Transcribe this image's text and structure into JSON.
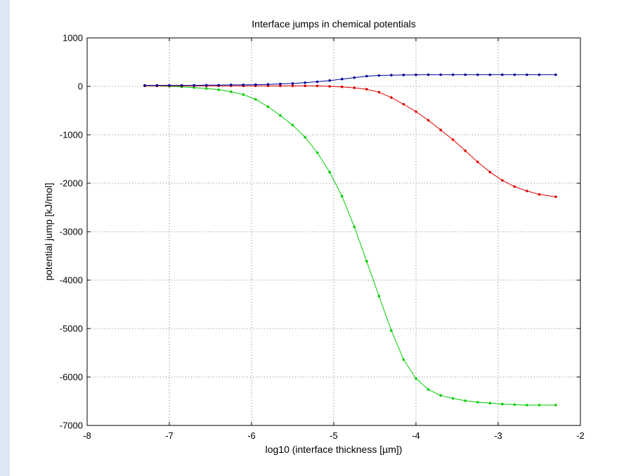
{
  "chart_data": {
    "type": "line",
    "title": "Interface jumps in chemical potentials",
    "xlabel": "log10 (interface thickness [µm])",
    "ylabel": "potential jump [kJ/mol]",
    "xlim": [
      -8,
      -2
    ],
    "ylim": [
      -7000,
      1000
    ],
    "xticks": [
      -8,
      -7,
      -6,
      -5,
      -4,
      -3,
      -2
    ],
    "yticks": [
      1000,
      0,
      -1000,
      -2000,
      -3000,
      -4000,
      -5000,
      -6000,
      -7000
    ],
    "grid": true,
    "series": [
      {
        "color": "#00cc00",
        "x": [
          -7.3,
          -7.15,
          -7.0,
          -6.85,
          -6.7,
          -6.55,
          -6.4,
          -6.25,
          -6.1,
          -5.95,
          -5.8,
          -5.65,
          -5.5,
          -5.35,
          -5.2,
          -5.05,
          -4.9,
          -4.75,
          -4.6,
          -4.45,
          -4.3,
          -4.15,
          -4.0,
          -3.85,
          -3.7,
          -3.55,
          -3.4,
          -3.25,
          -3.1,
          -2.95,
          -2.8,
          -2.65,
          -2.5,
          -2.3
        ],
        "y": [
          10,
          10,
          0,
          -10,
          -25,
          -45,
          -70,
          -110,
          -170,
          -270,
          -420,
          -600,
          -800,
          -1050,
          -1370,
          -1770,
          -2270,
          -2900,
          -3610,
          -4330,
          -5040,
          -5640,
          -6030,
          -6260,
          -6380,
          -6440,
          -6490,
          -6520,
          -6540,
          -6560,
          -6570,
          -6580,
          -6580,
          -6580
        ]
      },
      {
        "color": "#dd0000",
        "x": [
          -7.3,
          -7.15,
          -7.0,
          -6.85,
          -6.7,
          -6.55,
          -6.4,
          -6.25,
          -6.1,
          -5.95,
          -5.8,
          -5.65,
          -5.5,
          -5.35,
          -5.2,
          -5.05,
          -4.9,
          -4.75,
          -4.6,
          -4.45,
          -4.3,
          -4.15,
          -4.0,
          -3.85,
          -3.7,
          -3.55,
          -3.4,
          -3.25,
          -3.1,
          -2.95,
          -2.8,
          -2.65,
          -2.5,
          -2.3
        ],
        "y": [
          10,
          10,
          10,
          10,
          10,
          10,
          10,
          10,
          10,
          10,
          10,
          10,
          10,
          10,
          10,
          0,
          -10,
          -30,
          -60,
          -120,
          -230,
          -370,
          -520,
          -700,
          -900,
          -1100,
          -1330,
          -1560,
          -1770,
          -1940,
          -2070,
          -2160,
          -2230,
          -2280
        ]
      },
      {
        "color": "#000099",
        "x": [
          -7.3,
          -7.15,
          -7.0,
          -6.85,
          -6.7,
          -6.55,
          -6.4,
          -6.25,
          -6.1,
          -5.95,
          -5.8,
          -5.65,
          -5.5,
          -5.35,
          -5.2,
          -5.05,
          -4.9,
          -4.75,
          -4.6,
          -4.45,
          -4.3,
          -4.15,
          -4.0,
          -3.85,
          -3.7,
          -3.55,
          -3.4,
          -3.25,
          -3.1,
          -2.95,
          -2.8,
          -2.65,
          -2.5,
          -2.3
        ],
        "y": [
          20,
          20,
          20,
          20,
          20,
          25,
          25,
          30,
          30,
          35,
          40,
          50,
          60,
          75,
          95,
          120,
          150,
          180,
          210,
          225,
          230,
          235,
          238,
          240,
          240,
          240,
          240,
          240,
          240,
          240,
          240,
          240,
          240,
          240
        ]
      }
    ]
  }
}
